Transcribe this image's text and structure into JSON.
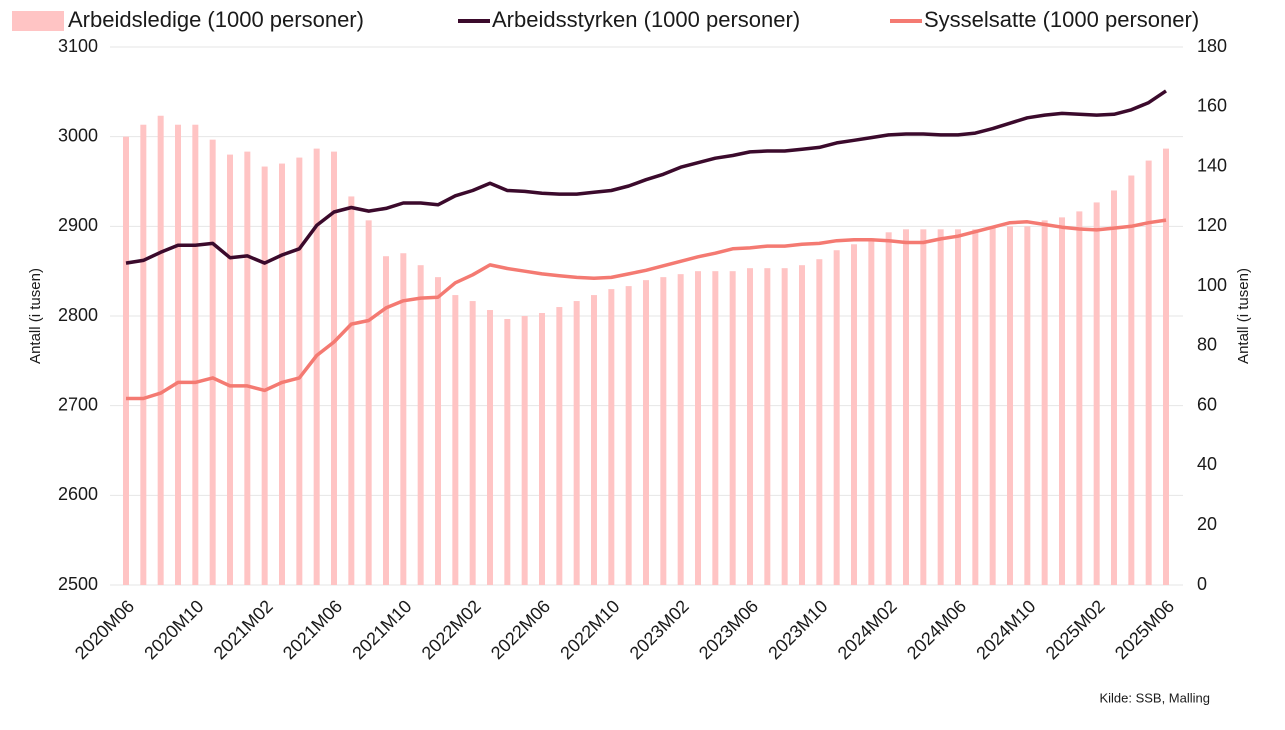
{
  "chart_data": {
    "type": "combo",
    "categories": [
      "2020M06",
      null,
      null,
      null,
      "2020M10",
      null,
      null,
      null,
      "2021M02",
      null,
      null,
      null,
      "2021M06",
      null,
      null,
      null,
      "2021M10",
      null,
      null,
      null,
      "2022M02",
      null,
      null,
      null,
      "2022M06",
      null,
      null,
      null,
      "2022M10",
      null,
      null,
      null,
      "2023M02",
      null,
      null,
      null,
      "2023M06",
      null,
      null,
      null,
      "2023M10",
      null,
      null,
      null,
      "2024M02",
      null,
      null,
      null,
      "2024M06",
      null,
      null,
      null,
      "2024M10",
      null,
      null,
      null,
      "2025M02",
      null,
      null,
      null,
      "2025M06"
    ],
    "series": [
      {
        "name": "Arbeidsledige (1000 personer)",
        "type": "bar",
        "axis": "y2",
        "color": "#ffc4c4",
        "values": [
          150,
          154,
          157,
          154,
          154,
          149,
          144,
          145,
          140,
          141,
          143,
          146,
          145,
          130,
          122,
          110,
          111,
          107,
          103,
          97,
          95,
          92,
          89,
          90,
          91,
          93,
          95,
          97,
          99,
          100,
          102,
          103,
          104,
          105,
          105,
          105,
          106,
          106,
          106,
          107,
          109,
          112,
          114,
          116,
          118,
          119,
          119,
          119,
          119,
          119,
          120,
          120,
          120,
          122,
          123,
          125,
          128,
          132,
          137,
          142,
          146
        ]
      },
      {
        "name": "Arbeidsstyrken (1000 personer)",
        "type": "line",
        "color": "#3b0a2c",
        "values": [
          2859,
          2862,
          2871,
          2879,
          2879,
          2881,
          2865,
          2867,
          2859,
          2868,
          2875,
          2901,
          2916,
          2921,
          2917,
          2920,
          2926,
          2926,
          2924,
          2934,
          2940,
          2948,
          2940,
          2939,
          2937,
          2936,
          2936,
          2938,
          2940,
          2945,
          2952,
          2958,
          2966,
          2971,
          2976,
          2979,
          2983,
          2984,
          2984,
          2986,
          2988,
          2993,
          2996,
          2999,
          3002,
          3003,
          3003,
          3002,
          3002,
          3004,
          3009,
          3015,
          3021,
          3024,
          3026,
          3025,
          3024,
          3025,
          3030,
          3038,
          3051
        ]
      },
      {
        "name": "Sysselsatte (1000 personer)",
        "type": "line",
        "color": "#f47a72",
        "values": [
          2708,
          2708,
          2714,
          2726,
          2726,
          2731,
          2722,
          2722,
          2717,
          2726,
          2731,
          2756,
          2771,
          2791,
          2795,
          2809,
          2817,
          2820,
          2821,
          2837,
          2846,
          2857,
          2853,
          2850,
          2847,
          2845,
          2843,
          2842,
          2843,
          2847,
          2851,
          2856,
          2861,
          2866,
          2870,
          2875,
          2876,
          2878,
          2878,
          2880,
          2881,
          2884,
          2885,
          2885,
          2884,
          2882,
          2882,
          2886,
          2889,
          2894,
          2899,
          2904,
          2905,
          2902,
          2899,
          2897,
          2896,
          2898,
          2900,
          2904,
          2907
        ]
      }
    ],
    "ylim": [
      2500,
      3100
    ],
    "yticks": [
      2500,
      2600,
      2700,
      2800,
      2900,
      3000,
      3100
    ],
    "y2lim": [
      0,
      180
    ],
    "y2ticks": [
      0,
      20,
      40,
      60,
      80,
      100,
      120,
      140,
      160,
      180
    ],
    "ylabel": "Antall (i tusen)",
    "y2label": "Antall (i tusen)",
    "source": "Kilde: SSB, Malling",
    "grid": true,
    "legend": "top"
  }
}
